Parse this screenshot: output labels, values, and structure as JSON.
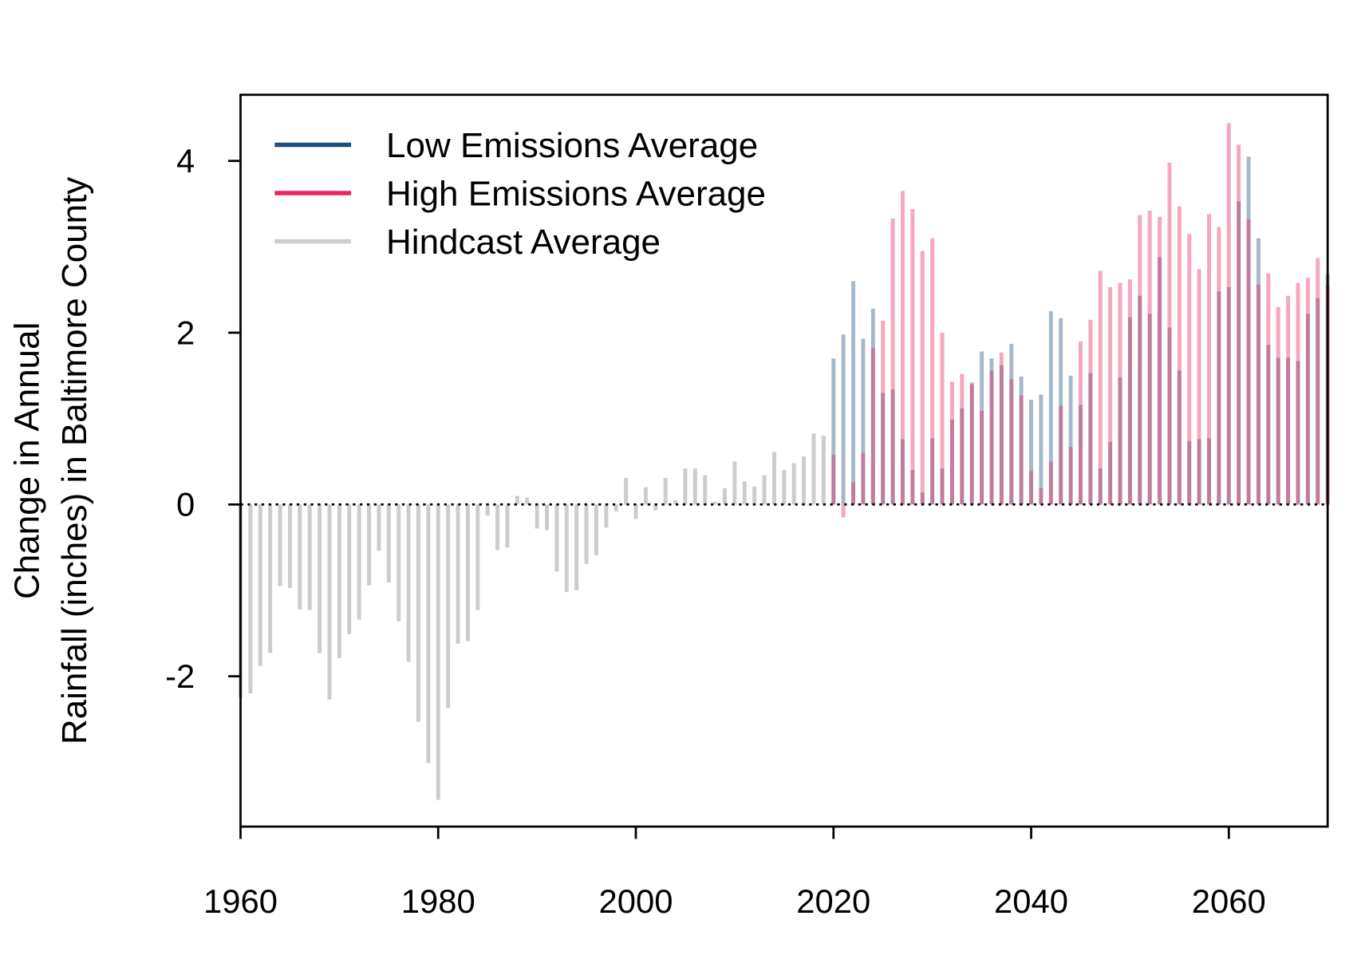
{
  "chart_data": {
    "type": "bar",
    "ylabel": [
      "Change in Annual",
      "Rainfall (inches) in Baltimore County"
    ],
    "xlim": [
      1960,
      2070
    ],
    "ylim": [
      -3.75,
      4.77
    ],
    "xticks": [
      1960,
      1980,
      2000,
      2020,
      2040,
      2060
    ],
    "yticks": [
      -2,
      0,
      2,
      4
    ],
    "legend": "top-left",
    "series": [
      {
        "name": "Low Emissions Average",
        "color": "#1f4e79",
        "opacity": 0.4,
        "x": [
          2020,
          2021,
          2022,
          2023,
          2024,
          2025,
          2026,
          2027,
          2028,
          2029,
          2030,
          2031,
          2032,
          2033,
          2034,
          2035,
          2036,
          2037,
          2038,
          2039,
          2040,
          2041,
          2042,
          2043,
          2044,
          2045,
          2046,
          2047,
          2048,
          2049,
          2050,
          2051,
          2052,
          2053,
          2054,
          2055,
          2056,
          2057,
          2058,
          2059,
          2060,
          2061,
          2062,
          2063,
          2064,
          2065,
          2066,
          2067,
          2068,
          2069,
          2070
        ],
        "values": [
          1.7,
          1.98,
          2.6,
          1.93,
          2.28,
          1.3,
          1.34,
          0.76,
          0.4,
          0.14,
          0.77,
          0.42,
          0.99,
          1.12,
          1.42,
          1.78,
          1.7,
          1.62,
          1.87,
          1.49,
          1.22,
          1.28,
          2.25,
          2.17,
          1.5,
          1.16,
          1.53,
          0.42,
          0.73,
          1.48,
          2.18,
          2.43,
          2.22,
          2.88,
          2.06,
          1.56,
          0.74,
          0.76,
          0.77,
          2.48,
          2.53,
          3.53,
          4.05,
          3.1,
          1.86,
          1.71,
          1.71,
          1.67,
          2.22,
          2.4,
          2.68
        ]
      },
      {
        "name": "High Emissions Average",
        "color": "#e8245a",
        "opacity": 0.4,
        "x": [
          2020,
          2021,
          2022,
          2023,
          2024,
          2025,
          2026,
          2027,
          2028,
          2029,
          2030,
          2031,
          2032,
          2033,
          2034,
          2035,
          2036,
          2037,
          2038,
          2039,
          2040,
          2041,
          2042,
          2043,
          2044,
          2045,
          2046,
          2047,
          2048,
          2049,
          2050,
          2051,
          2052,
          2053,
          2054,
          2055,
          2056,
          2057,
          2058,
          2059,
          2060,
          2061,
          2062,
          2063,
          2064,
          2065,
          2066,
          2067,
          2068,
          2069,
          2070
        ],
        "values": [
          0.58,
          -0.15,
          0.26,
          0.6,
          1.82,
          2.14,
          3.33,
          3.65,
          3.44,
          2.95,
          3.1,
          2.0,
          1.43,
          1.52,
          1.4,
          1.09,
          1.56,
          1.77,
          1.46,
          1.27,
          0.39,
          0.19,
          0.5,
          1.15,
          0.67,
          1.9,
          2.15,
          2.72,
          2.53,
          2.58,
          2.62,
          3.37,
          3.42,
          3.35,
          3.98,
          3.47,
          3.15,
          2.74,
          3.38,
          3.23,
          4.44,
          4.19,
          3.32,
          2.56,
          2.69,
          2.3,
          2.43,
          2.58,
          2.64,
          2.87,
          2.55
        ]
      },
      {
        "name": "Hindcast Average",
        "color": "#cccccc",
        "opacity": 1,
        "x": [
          1960,
          1961,
          1962,
          1963,
          1964,
          1965,
          1966,
          1967,
          1968,
          1969,
          1970,
          1971,
          1972,
          1973,
          1974,
          1975,
          1976,
          1977,
          1978,
          1979,
          1980,
          1981,
          1982,
          1983,
          1984,
          1985,
          1986,
          1987,
          1988,
          1989,
          1990,
          1991,
          1992,
          1993,
          1994,
          1995,
          1996,
          1997,
          1998,
          1999,
          2000,
          2001,
          2002,
          2003,
          2004,
          2005,
          2006,
          2007,
          2008,
          2009,
          2010,
          2011,
          2012,
          2013,
          2014,
          2015,
          2016,
          2017,
          2018,
          2019
        ],
        "values": [
          -2.25,
          -2.2,
          -1.88,
          -1.73,
          -0.95,
          -0.97,
          -1.22,
          -1.23,
          -1.73,
          -2.27,
          -1.79,
          -1.51,
          -1.34,
          -0.94,
          -0.54,
          -0.91,
          -1.36,
          -1.83,
          -2.53,
          -3.01,
          -3.44,
          -2.37,
          -1.62,
          -1.59,
          -1.23,
          -0.13,
          -0.53,
          -0.5,
          0.1,
          0.08,
          -0.28,
          -0.3,
          -0.78,
          -1.02,
          -1.0,
          -0.69,
          -0.59,
          -0.27,
          -0.08,
          0.31,
          -0.17,
          0.2,
          -0.07,
          0.31,
          0.05,
          0.42,
          0.42,
          0.34,
          0.03,
          0.19,
          0.5,
          0.27,
          0.21,
          0.34,
          0.61,
          0.4,
          0.48,
          0.56,
          0.83,
          0.8
        ]
      }
    ]
  }
}
